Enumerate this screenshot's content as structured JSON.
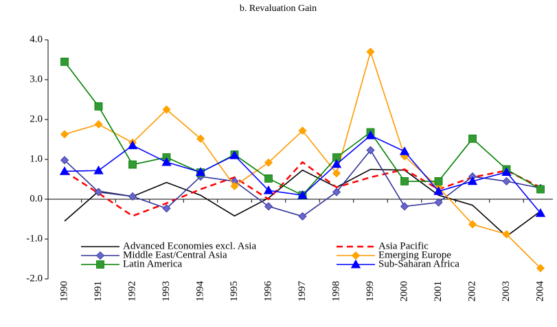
{
  "chart_data": {
    "type": "line",
    "title": "b. Revaluation Gain",
    "categories": [
      "1990",
      "1991",
      "1992",
      "1993",
      "1994",
      "1995",
      "1996",
      "1997",
      "1998",
      "1999",
      "2000",
      "2001",
      "2002",
      "2003",
      "2004"
    ],
    "ylim": [
      -2,
      4
    ],
    "yticks": [
      {
        "value": -2,
        "label": "-2.0"
      },
      {
        "value": -1,
        "label": "-1.0"
      },
      {
        "value": 0,
        "label": "0.0"
      },
      {
        "value": 1,
        "label": "1.0"
      },
      {
        "value": 2,
        "label": "2.0"
      },
      {
        "value": 3,
        "label": "3.0"
      },
      {
        "value": 4,
        "label": "4.0"
      }
    ],
    "legend": "lower left",
    "series": [
      {
        "name": "Advanced Economies excl. Asia",
        "color": "#000000",
        "values": [
          -0.55,
          0.2,
          0.07,
          0.42,
          0.1,
          -0.42,
          0.03,
          0.73,
          0.3,
          0.75,
          0.73,
          0.1,
          -0.15,
          -0.93,
          -0.3
        ]
      },
      {
        "name": "Asia Pacific",
        "color": "#ff0000",
        "dash": true,
        "values": [
          0.7,
          0.15,
          -0.42,
          -0.1,
          0.25,
          0.55,
          0.0,
          0.93,
          0.3,
          0.55,
          0.75,
          0.25,
          0.55,
          0.72,
          0.3
        ]
      },
      {
        "name": "Middle East/Central Asia",
        "color": "#333399",
        "marker": "diamond",
        "marker_color": "#6666cc",
        "values": [
          0.98,
          0.18,
          0.07,
          -0.23,
          0.57,
          0.45,
          -0.18,
          -0.43,
          0.18,
          1.23,
          -0.18,
          -0.08,
          0.57,
          0.45,
          0.28
        ]
      },
      {
        "name": "Emerging Europe",
        "color": "#ff9900",
        "marker": "diamond",
        "marker_color": "#ffa500",
        "values": [
          1.63,
          1.88,
          1.42,
          2.25,
          1.52,
          0.33,
          0.92,
          1.72,
          0.65,
          3.7,
          1.08,
          0.3,
          -0.63,
          -0.88,
          -1.73
        ]
      },
      {
        "name": "Latin America",
        "color": "#008000",
        "marker": "square",
        "marker_color": "#339933",
        "values": [
          3.45,
          2.33,
          0.87,
          1.05,
          0.67,
          1.12,
          0.52,
          0.1,
          1.05,
          1.68,
          0.45,
          0.45,
          1.52,
          0.75,
          0.25
        ]
      },
      {
        "name": "Sub-Saharan Africa",
        "color": "#0000ff",
        "marker": "triangle",
        "marker_color": "#0000ff",
        "values": [
          0.7,
          0.72,
          1.35,
          0.93,
          0.68,
          1.1,
          0.22,
          0.1,
          0.88,
          1.6,
          1.2,
          0.2,
          0.45,
          0.68,
          -0.35
        ]
      }
    ]
  }
}
